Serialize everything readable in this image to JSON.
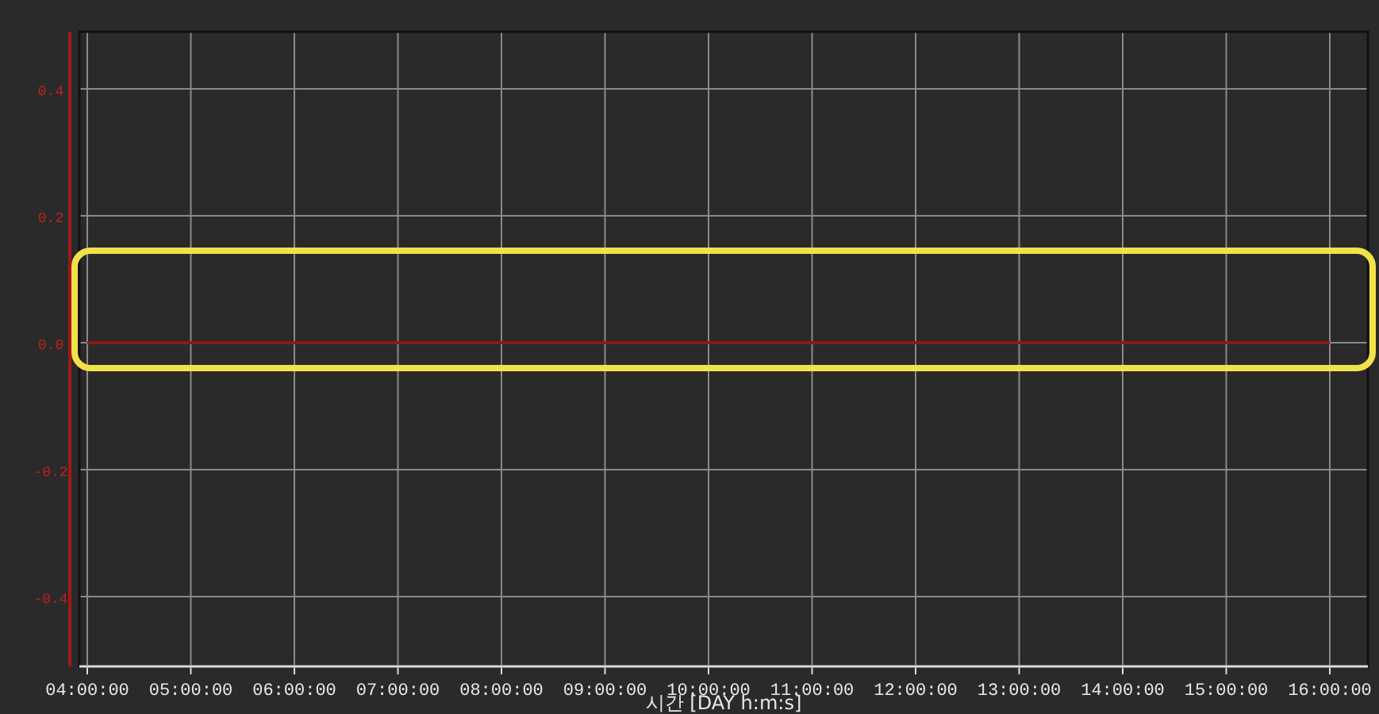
{
  "chart_data": {
    "type": "line",
    "xlabel": "시간 [DAY h:m:s]",
    "x": [
      4,
      16
    ],
    "series": [
      {
        "color": "#8b1a1a",
        "values": [
          0,
          0
        ]
      }
    ],
    "xlim": [
      4,
      16
    ],
    "xticks": [
      {
        "value": 4,
        "label": "04:00:00"
      },
      {
        "value": 5,
        "label": "05:00:00"
      },
      {
        "value": 6,
        "label": "06:00:00"
      },
      {
        "value": 7,
        "label": "07:00:00"
      },
      {
        "value": 8,
        "label": "08:00:00"
      },
      {
        "value": 9,
        "label": "09:00:00"
      },
      {
        "value": 10,
        "label": "10:00:00"
      },
      {
        "value": 11,
        "label": "11:00:00"
      },
      {
        "value": 12,
        "label": "12:00:00"
      },
      {
        "value": 13,
        "label": "13:00:00"
      },
      {
        "value": 14,
        "label": "14:00:00"
      },
      {
        "value": 15,
        "label": "15:00:00"
      },
      {
        "value": 16,
        "label": "16:00:00"
      }
    ],
    "ylim": [
      -0.51,
      0.49
    ],
    "yticks": [
      {
        "value": 0.4,
        "label": "0.4"
      },
      {
        "value": 0.2,
        "label": "0.2"
      },
      {
        "value": 0,
        "label": "0.0"
      },
      {
        "value": -0.2,
        "label": "-0.2"
      },
      {
        "value": -0.4,
        "label": "-0.4"
      }
    ],
    "grid": true,
    "line_style": "solid"
  }
}
